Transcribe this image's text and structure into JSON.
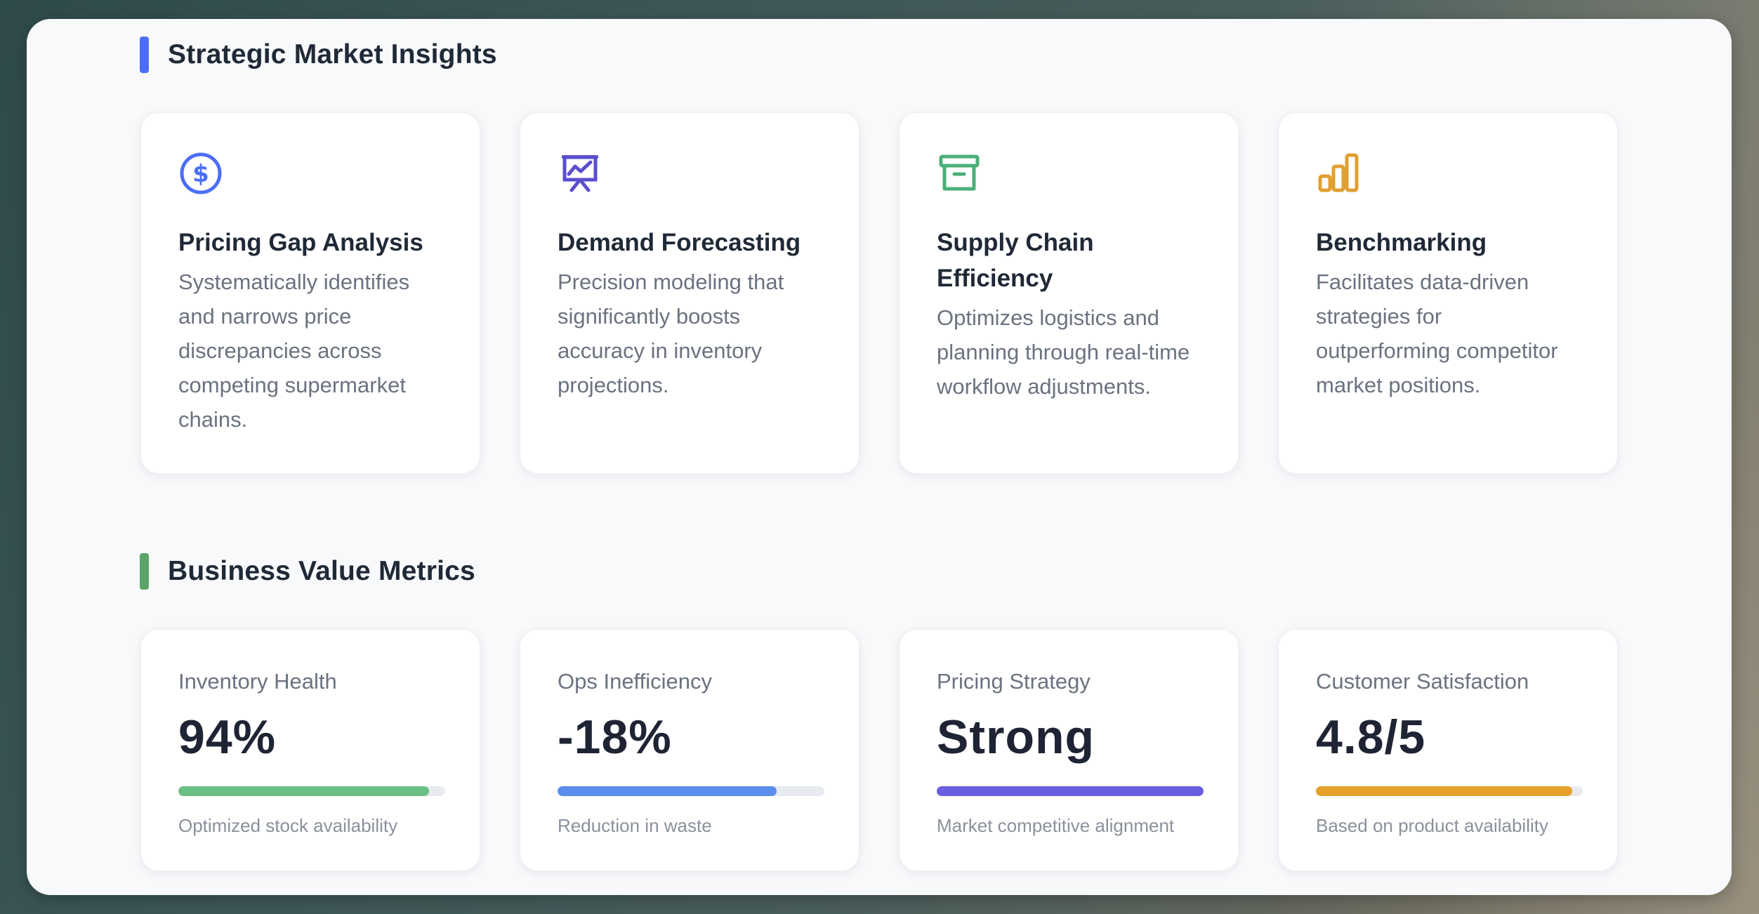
{
  "sections": {
    "insights": {
      "title": "Strategic Market Insights",
      "accent": "#4c6ef5"
    },
    "metrics": {
      "title": "Business Value Metrics",
      "accent": "#5aa469"
    }
  },
  "insights": [
    {
      "icon": "dollar-circle-icon",
      "color": "#4c6ef5",
      "title": "Pricing Gap Analysis",
      "desc": [
        "Systematically identifies",
        "and narrows price",
        "discrepancies across",
        "competing supermarket",
        "chains."
      ]
    },
    {
      "icon": "presentation-chart-icon",
      "color": "#5b4fcf",
      "title": "Demand Forecasting",
      "desc": [
        "Precision modeling that",
        "significantly boosts",
        "accuracy in inventory",
        "projections."
      ]
    },
    {
      "icon": "archive-box-icon",
      "color": "#4caf7a",
      "title_lines": [
        "Supply Chain",
        "Efficiency"
      ],
      "desc": [
        "Optimizes logistics and",
        "planning through real-time",
        "workflow adjustments."
      ]
    },
    {
      "icon": "bar-chart-icon",
      "color": "#e0a030",
      "title": "Benchmarking",
      "desc": [
        "Facilitates data-driven",
        "strategies for",
        "outperforming competitor",
        "market positions."
      ]
    }
  ],
  "metrics": [
    {
      "label": "Inventory Health",
      "value": "94%",
      "progress": 0.94,
      "color": "#6cbf84",
      "note": "Optimized stock availability"
    },
    {
      "label": "Ops Inefficiency",
      "value": "-18%",
      "progress": 0.82,
      "color": "#5b8def",
      "note": "Reduction in waste"
    },
    {
      "label": "Pricing Strategy",
      "value": "Strong",
      "progress": 1.0,
      "color": "#6a5ee0",
      "note": "Market competitive alignment"
    },
    {
      "label": "Customer Satisfaction",
      "value": "4.8/5",
      "progress": 0.96,
      "color": "#e5a22b",
      "note": "Based on product availability"
    }
  ]
}
